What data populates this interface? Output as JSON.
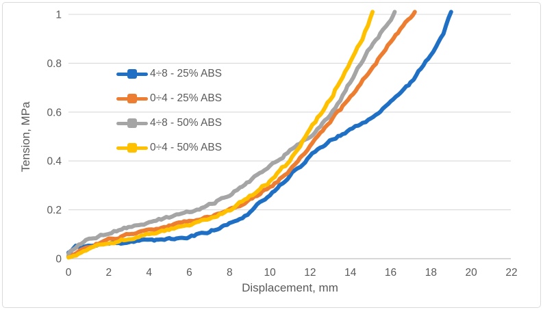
{
  "figure": {
    "background": "#FFFFFF",
    "border_color": "#D9D9D9"
  },
  "chart_data": {
    "type": "line",
    "title": "",
    "xlabel": "Displacement, mm",
    "ylabel": "Tension, MPa",
    "xlim": [
      0,
      22
    ],
    "ylim": [
      0,
      1
    ],
    "x_ticks": [
      0,
      2,
      4,
      6,
      8,
      10,
      12,
      14,
      16,
      18,
      20,
      22
    ],
    "x_tick_labels": [
      "0",
      "2",
      "4",
      "6",
      "8",
      "10",
      "12",
      "14",
      "16",
      "18",
      "20",
      "22"
    ],
    "y_ticks": [
      0,
      0.2,
      0.4,
      0.6,
      0.8,
      1
    ],
    "y_tick_labels": [
      "0",
      "0.2",
      "0.4",
      "0.6",
      "0.8",
      "1"
    ],
    "grid": "horizontal",
    "legend_position": "upper-left-inside",
    "colors": {
      "grid": "#D9D9D9",
      "axis_line": "#BFBFBF",
      "text": "#595959"
    },
    "series": [
      {
        "name": "4÷8 - 25% ABS",
        "color": "#1F70C4",
        "points": [
          [
            0,
            0.025
          ],
          [
            0.35,
            0.05
          ],
          [
            1,
            0.055
          ],
          [
            2,
            0.062
          ],
          [
            3,
            0.068
          ],
          [
            4,
            0.075
          ],
          [
            5,
            0.082
          ],
          [
            6,
            0.092
          ],
          [
            7,
            0.112
          ],
          [
            8,
            0.142
          ],
          [
            9,
            0.19
          ],
          [
            10,
            0.26
          ],
          [
            11,
            0.34
          ],
          [
            12,
            0.42
          ],
          [
            13,
            0.48
          ],
          [
            14,
            0.53
          ],
          [
            15,
            0.572
          ],
          [
            16,
            0.64
          ],
          [
            17,
            0.72
          ],
          [
            18,
            0.835
          ],
          [
            18.6,
            0.925
          ],
          [
            19,
            1.01
          ]
        ]
      },
      {
        "name": "0÷4 - 25% ABS",
        "color": "#ED7D31",
        "points": [
          [
            0,
            0.01
          ],
          [
            0.5,
            0.03
          ],
          [
            1,
            0.05
          ],
          [
            2,
            0.075
          ],
          [
            3,
            0.1
          ],
          [
            4,
            0.12
          ],
          [
            5,
            0.135
          ],
          [
            6,
            0.15
          ],
          [
            7,
            0.172
          ],
          [
            8,
            0.2
          ],
          [
            9,
            0.243
          ],
          [
            10,
            0.29
          ],
          [
            11,
            0.36
          ],
          [
            12,
            0.46
          ],
          [
            13,
            0.56
          ],
          [
            14,
            0.662
          ],
          [
            15,
            0.775
          ],
          [
            16,
            0.885
          ],
          [
            17,
            0.985
          ],
          [
            17.2,
            1.01
          ]
        ]
      },
      {
        "name": "4÷8 - 50% ABS",
        "color": "#A5A5A5",
        "points": [
          [
            0,
            0.02
          ],
          [
            0.5,
            0.055
          ],
          [
            1,
            0.08
          ],
          [
            2,
            0.105
          ],
          [
            3,
            0.13
          ],
          [
            4,
            0.15
          ],
          [
            5,
            0.17
          ],
          [
            6,
            0.19
          ],
          [
            7,
            0.222
          ],
          [
            8,
            0.258
          ],
          [
            9,
            0.315
          ],
          [
            10,
            0.38
          ],
          [
            11,
            0.44
          ],
          [
            12,
            0.5
          ],
          [
            13,
            0.58
          ],
          [
            14,
            0.72
          ],
          [
            14.5,
            0.8
          ],
          [
            15,
            0.87
          ],
          [
            16,
            0.975
          ],
          [
            16.2,
            1.01
          ]
        ]
      },
      {
        "name": "0÷4 - 50% ABS",
        "color": "#FFC000",
        "points": [
          [
            0,
            0.005
          ],
          [
            1,
            0.04
          ],
          [
            2,
            0.06
          ],
          [
            3,
            0.083
          ],
          [
            4,
            0.1
          ],
          [
            5,
            0.12
          ],
          [
            6,
            0.14
          ],
          [
            7,
            0.168
          ],
          [
            8,
            0.198
          ],
          [
            9,
            0.255
          ],
          [
            10,
            0.315
          ],
          [
            11,
            0.4
          ],
          [
            12,
            0.53
          ],
          [
            13,
            0.655
          ],
          [
            14,
            0.805
          ],
          [
            14.6,
            0.9
          ],
          [
            15,
            0.985
          ],
          [
            15.1,
            1.01
          ]
        ]
      }
    ]
  }
}
